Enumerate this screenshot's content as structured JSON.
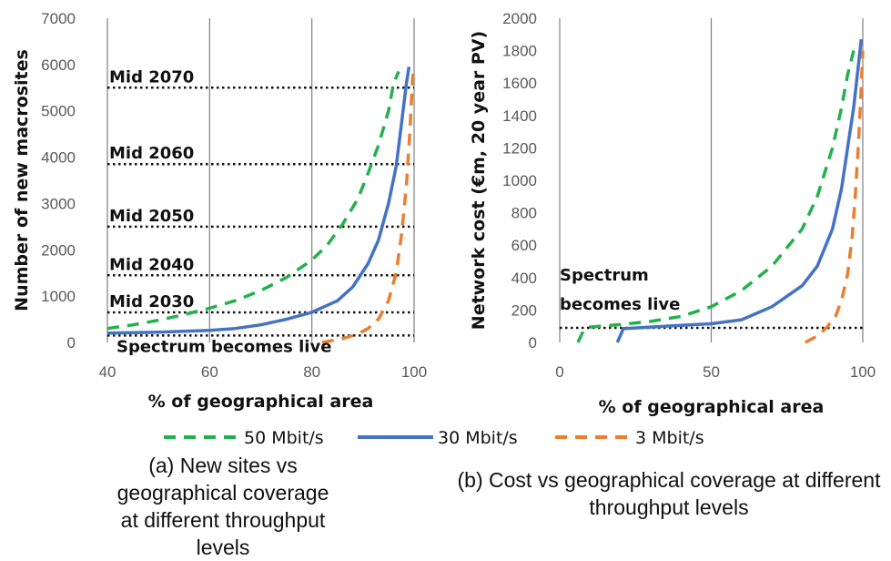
{
  "chart_data": [
    {
      "type": "line",
      "panel": "a",
      "xlabel": "% of geographical area",
      "ylabel": "Number of new macrosites",
      "xlim": [
        40,
        100
      ],
      "ylim": [
        0,
        7000
      ],
      "xticks": [
        40,
        60,
        80,
        100
      ],
      "yticks": [
        0,
        1000,
        2000,
        3000,
        4000,
        5000,
        6000,
        7000
      ],
      "grid": "vertical",
      "series": [
        {
          "name": "50 Mbit/s",
          "color": "#22b14c",
          "dash": "dashed",
          "points": [
            [
              40,
              300
            ],
            [
              45,
              380
            ],
            [
              50,
              480
            ],
            [
              55,
              600
            ],
            [
              60,
              740
            ],
            [
              65,
              900
            ],
            [
              70,
              1120
            ],
            [
              75,
              1400
            ],
            [
              80,
              1780
            ],
            [
              83,
              2100
            ],
            [
              86,
              2550
            ],
            [
              89,
              3100
            ],
            [
              91,
              3650
            ],
            [
              93,
              4250
            ],
            [
              95,
              5000
            ],
            [
              96,
              5600
            ],
            [
              97,
              5850
            ]
          ]
        },
        {
          "name": "30 Mbit/s",
          "color": "#4472c4",
          "dash": "solid",
          "points": [
            [
              40,
              200
            ],
            [
              50,
              220
            ],
            [
              60,
              260
            ],
            [
              65,
              300
            ],
            [
              70,
              380
            ],
            [
              75,
              500
            ],
            [
              80,
              650
            ],
            [
              85,
              900
            ],
            [
              88,
              1200
            ],
            [
              91,
              1700
            ],
            [
              93,
              2200
            ],
            [
              95,
              3000
            ],
            [
              96.5,
              3800
            ],
            [
              97.5,
              4700
            ],
            [
              98.5,
              5600
            ],
            [
              99,
              5950
            ]
          ]
        },
        {
          "name": "3 Mbit/s",
          "color": "#ed7d31",
          "dash": "dashed",
          "points": [
            [
              82,
              0
            ],
            [
              86,
              80
            ],
            [
              89,
              180
            ],
            [
              91,
              300
            ],
            [
              93,
              500
            ],
            [
              95,
              900
            ],
            [
              96.5,
              1500
            ],
            [
              97.5,
              2300
            ],
            [
              98.5,
              3400
            ],
            [
              99.2,
              4600
            ],
            [
              99.7,
              5700
            ],
            [
              100,
              5900
            ]
          ]
        }
      ],
      "thresholds": [
        {
          "label": "Mid 2070",
          "value": 5500
        },
        {
          "label": "Mid 2060",
          "value": 3850
        },
        {
          "label": "Mid 2050",
          "value": 2500
        },
        {
          "label": "Mid 2040",
          "value": 1450
        },
        {
          "label": "Mid 2030",
          "value": 650
        },
        {
          "label": "Spectrum becomes live",
          "value": 150
        }
      ]
    },
    {
      "type": "line",
      "panel": "b",
      "xlabel": "% of geographical area",
      "ylabel": "Network cost  (€m, 20 year PV)",
      "xlim": [
        0,
        100
      ],
      "ylim": [
        0,
        2000
      ],
      "xticks": [
        0,
        50,
        100
      ],
      "yticks": [
        0,
        200,
        400,
        600,
        800,
        1000,
        1200,
        1400,
        1600,
        1800,
        2000
      ],
      "grid": "vertical",
      "series": [
        {
          "name": "50 Mbit/s",
          "color": "#22b14c",
          "dash": "dashed",
          "points": [
            [
              6,
              0
            ],
            [
              8,
              80
            ],
            [
              10,
              95
            ],
            [
              20,
              110
            ],
            [
              30,
              130
            ],
            [
              40,
              160
            ],
            [
              50,
              220
            ],
            [
              60,
              320
            ],
            [
              70,
              470
            ],
            [
              80,
              700
            ],
            [
              85,
              900
            ],
            [
              90,
              1200
            ],
            [
              93,
              1450
            ],
            [
              95,
              1650
            ],
            [
              97,
              1800
            ]
          ]
        },
        {
          "name": "30 Mbit/s",
          "color": "#4472c4",
          "dash": "solid",
          "points": [
            [
              19,
              0
            ],
            [
              21,
              85
            ],
            [
              30,
              95
            ],
            [
              40,
              105
            ],
            [
              50,
              115
            ],
            [
              60,
              140
            ],
            [
              70,
              220
            ],
            [
              80,
              350
            ],
            [
              85,
              470
            ],
            [
              90,
              700
            ],
            [
              93,
              950
            ],
            [
              95,
              1200
            ],
            [
              97,
              1450
            ],
            [
              98.5,
              1700
            ],
            [
              99.5,
              1870
            ]
          ]
        },
        {
          "name": "3 Mbit/s",
          "color": "#ed7d31",
          "dash": "dashed",
          "points": [
            [
              81,
              0
            ],
            [
              85,
              40
            ],
            [
              88,
              90
            ],
            [
              91,
              160
            ],
            [
              93,
              260
            ],
            [
              95,
              420
            ],
            [
              96.5,
              650
            ],
            [
              97.5,
              900
            ],
            [
              98.5,
              1200
            ],
            [
              99.3,
              1500
            ],
            [
              100,
              1800
            ]
          ]
        }
      ],
      "thresholds": [
        {
          "label": "Spectrum becomes live",
          "value": 90
        }
      ]
    }
  ],
  "legend": {
    "position": "bottom",
    "items": [
      {
        "label": "50 Mbit/s",
        "color": "#22b14c"
      },
      {
        "label": "30 Mbit/s",
        "color": "#4472c4"
      },
      {
        "label": "3 Mbit/s",
        "color": "#ed7d31"
      }
    ]
  },
  "annotations_b": {
    "line1": "Spectrum",
    "line2": "becomes live"
  },
  "captions": {
    "a": "(a) New sites vs geographical coverage at different throughput levels",
    "b": "(b) Cost vs geographical coverage at different throughput levels"
  }
}
